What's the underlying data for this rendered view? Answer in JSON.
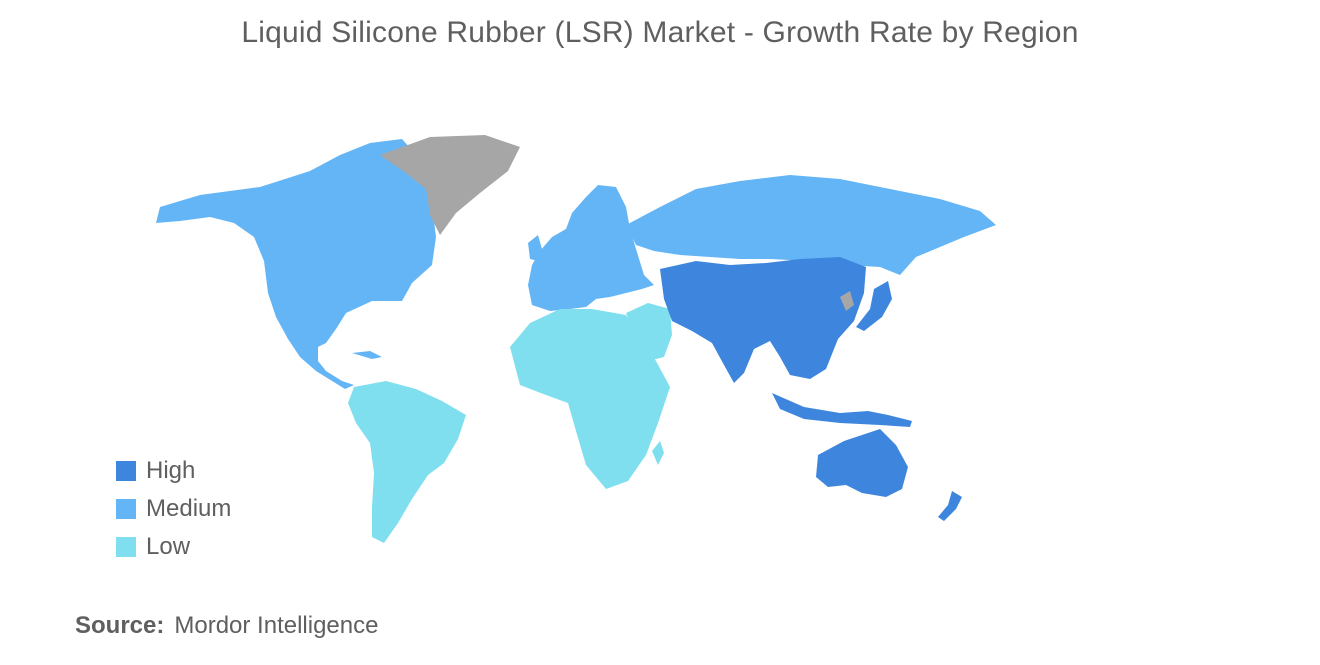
{
  "title": "Liquid Silicone Rubber (LSR) Market - Growth Rate by Region",
  "legend": [
    {
      "label": "High",
      "color": "#3e86dd"
    },
    {
      "label": "Medium",
      "color": "#64b5f6"
    },
    {
      "label": "Low",
      "color": "#7fdfee"
    }
  ],
  "no_data_color": "#a6a6a6",
  "regions": [
    {
      "name": "North America",
      "level": "Medium"
    },
    {
      "name": "Greenland",
      "level": "No data"
    },
    {
      "name": "South America",
      "level": "Low"
    },
    {
      "name": "Europe",
      "level": "Medium"
    },
    {
      "name": "Russia",
      "level": "Medium"
    },
    {
      "name": "Africa",
      "level": "Low"
    },
    {
      "name": "Middle East",
      "level": "Low"
    },
    {
      "name": "Asia-Pacific",
      "level": "High"
    },
    {
      "name": "Australia",
      "level": "High"
    },
    {
      "name": "New Zealand",
      "level": "High"
    }
  ],
  "source": {
    "label": "Source:",
    "value": "Mordor Intelligence"
  }
}
